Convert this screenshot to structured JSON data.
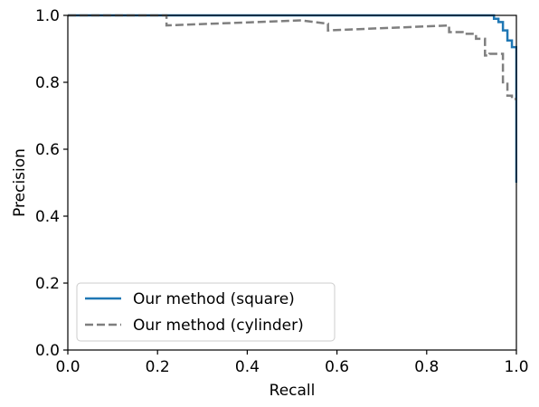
{
  "chart_data": {
    "type": "line",
    "title": "",
    "xlabel": "Recall",
    "ylabel": "Precision",
    "xlim": [
      0.0,
      1.0
    ],
    "ylim": [
      0.0,
      1.0
    ],
    "xticks": [
      "0.0",
      "0.2",
      "0.4",
      "0.6",
      "0.8",
      "1.0"
    ],
    "yticks": [
      "0.0",
      "0.2",
      "0.4",
      "0.6",
      "0.8",
      "1.0"
    ],
    "grid": false,
    "legend_position": "lower-left",
    "series": [
      {
        "name": "Our method (square)",
        "color": "#1f77b4",
        "style": "solid",
        "x": [
          0.0,
          0.95,
          0.95,
          0.96,
          0.96,
          0.97,
          0.97,
          0.98,
          0.98,
          0.99,
          0.99,
          1.0,
          1.0
        ],
        "y": [
          1.0,
          1.0,
          0.99,
          0.99,
          0.98,
          0.98,
          0.955,
          0.955,
          0.925,
          0.925,
          0.905,
          0.905,
          0.5
        ]
      },
      {
        "name": "Our method (cylinder)",
        "color": "#7f7f7f",
        "style": "dashed",
        "x": [
          0.0,
          0.22,
          0.22,
          0.52,
          0.52,
          0.58,
          0.58,
          0.85,
          0.85,
          0.88,
          0.88,
          0.91,
          0.91,
          0.93,
          0.93,
          0.94,
          0.94,
          0.97,
          0.97,
          0.98,
          0.98,
          0.99,
          0.99,
          1.0
        ],
        "y": [
          1.0,
          1.0,
          0.97,
          0.985,
          0.985,
          0.975,
          0.955,
          0.97,
          0.95,
          0.95,
          0.945,
          0.945,
          0.93,
          0.93,
          0.88,
          0.88,
          0.885,
          0.885,
          0.8,
          0.8,
          0.76,
          0.76,
          0.75,
          0.75
        ]
      }
    ]
  }
}
